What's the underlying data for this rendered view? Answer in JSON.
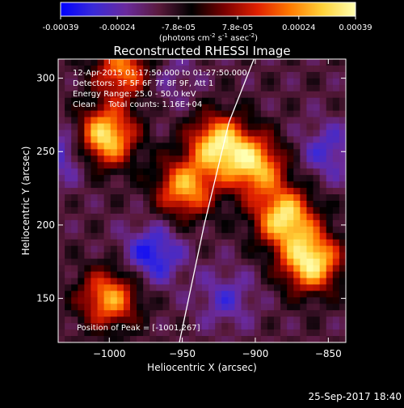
{
  "colorbar": {
    "tick_labels": [
      "-0.00039",
      "-0.00024",
      "-7.8e-05",
      "7.8e-05",
      "0.00024",
      "0.00039"
    ],
    "tick_values": [
      -0.00039,
      -0.00024,
      -7.8e-05,
      7.8e-05,
      0.00024,
      0.00039
    ],
    "range": [
      -0.00039,
      0.00039
    ],
    "units_prefix": "(photons cm",
    "units_mid1": " s",
    "units_mid2": " asec",
    "units_suffix": ")",
    "sup_cm": "-2",
    "sup_s": "-1",
    "sup_asec": "-2",
    "colormap": [
      "#0000ff",
      "#3a2ad8",
      "#6a2a9c",
      "#5a1a3c",
      "#000000",
      "#7a0000",
      "#e02000",
      "#ff7a00",
      "#ffd23a",
      "#ffffb0"
    ]
  },
  "chart_data": {
    "type": "heatmap",
    "title": "Reconstructed RHESSI Image",
    "xlabel": "Heliocentric X (arcsec)",
    "ylabel": "Heliocentric Y (arcsec)",
    "xlim": [
      -1035,
      -838
    ],
    "ylim": [
      120,
      313
    ],
    "x_ticks": [
      -1000,
      -950,
      -900,
      -850
    ],
    "x_tick_labels": [
      "−1000",
      "−950",
      "−900",
      "−850"
    ],
    "y_ticks": [
      150,
      200,
      250,
      300
    ],
    "y_tick_labels": [
      "150",
      "200",
      "250",
      "300"
    ],
    "limb_curve": {
      "x": [
        -952,
        -935,
        -918,
        -901
      ],
      "y": [
        120,
        200,
        270,
        313
      ]
    },
    "peak_position": [
      -1001,
      267
    ],
    "bright_sources": [
      {
        "x": -1003,
        "y": 260,
        "value": 0.00036
      },
      {
        "x": -925,
        "y": 255,
        "value": 0.00033
      },
      {
        "x": -900,
        "y": 240,
        "value": 0.00028
      },
      {
        "x": -880,
        "y": 205,
        "value": 0.00034
      },
      {
        "x": -862,
        "y": 175,
        "value": 0.00037
      },
      {
        "x": -948,
        "y": 225,
        "value": 0.00026
      },
      {
        "x": -1000,
        "y": 150,
        "value": 0.00025
      },
      {
        "x": -990,
        "y": 305,
        "value": 0.00022
      }
    ],
    "dim_sources": [
      {
        "x": -970,
        "y": 180,
        "value": -0.00035
      },
      {
        "x": -1030,
        "y": 250,
        "value": -0.0003
      },
      {
        "x": -850,
        "y": 250,
        "value": -0.00028
      },
      {
        "x": -920,
        "y": 150,
        "value": -0.00026
      },
      {
        "x": -960,
        "y": 300,
        "value": -0.00022
      }
    ],
    "annotations": {
      "time": "12-Apr-2015 01:17:50.000 to 01:27:50.000",
      "detectors": "Detectors: 3F 5F 6F 7F 8F 9F, Att 1",
      "energy": "Energy Range: 25.0 - 50.0 keV",
      "clean": "Clean",
      "counts": "Total counts: 1.16E+04",
      "peak": "Position of Peak = [-1001,267]"
    }
  },
  "footer_date": "25-Sep-2017 18:40"
}
